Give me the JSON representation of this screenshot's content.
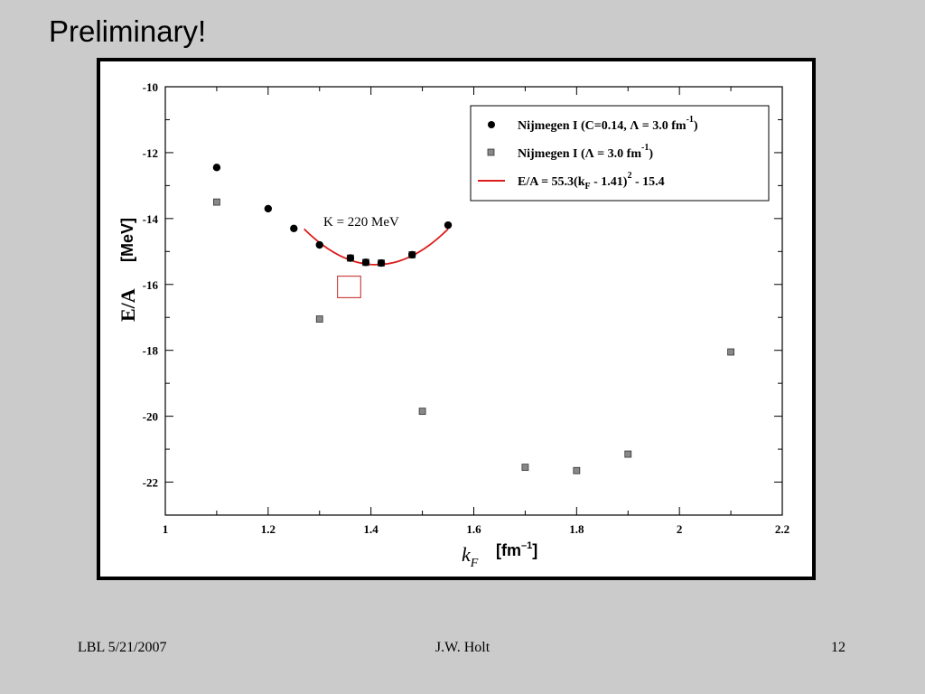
{
  "slide": {
    "title": "Preliminary!",
    "footer_left": "LBL 5/21/2007",
    "footer_center": "J.W. Holt",
    "footer_right": "12"
  },
  "chart_data": {
    "type": "scatter",
    "xlabel_sym": "k",
    "xlabel_sub": "F",
    "xlabel_unit": "[fm",
    "xlabel_unit_sup": "–1",
    "xlabel_unit_close": "]",
    "ylabel_sym": "E/A",
    "ylabel_unit": "[MeV]",
    "xlim": [
      1,
      2.2
    ],
    "ylim": [
      -23,
      -10
    ],
    "x_ticks": [
      1,
      1.2,
      1.4,
      1.6,
      1.8,
      2,
      2.2
    ],
    "x_tick_labels": [
      "1",
      "1.2",
      "1.4",
      "1.6",
      "1.8",
      "2",
      "2.2"
    ],
    "y_ticks": [
      -22,
      -20,
      -18,
      -16,
      -14,
      -12,
      -10
    ],
    "y_tick_labels": [
      "-22",
      "-20",
      "-18",
      "-16",
      "-14",
      "-12",
      "-10"
    ],
    "grid": false,
    "legend_position": "top-right",
    "annotation": "K = 220 MeV",
    "legend": [
      {
        "main": "Nijmegen I (C=0.14, Λ = 3.0 fm",
        "sup": "-1",
        "tail": ")"
      },
      {
        "main": "Nijmegen I (Λ = 3.0 fm",
        "sup": "-1",
        "tail": ")"
      },
      {
        "main": "E/A = 55.3(k",
        "sub": "F",
        "mid": " - 1.41)",
        "sup": "2",
        "tail": " - 15.4"
      }
    ],
    "series": [
      {
        "marker": "circle",
        "color": "#000000",
        "x": [
          1.1,
          1.2,
          1.25,
          1.3,
          1.36,
          1.39,
          1.42,
          1.48,
          1.55
        ],
        "y": [
          -12.45,
          -13.7,
          -14.3,
          -14.8,
          -15.2,
          -15.33,
          -15.35,
          -15.1,
          -14.2
        ]
      },
      {
        "marker": "square",
        "color": "#888888",
        "x": [
          1.1,
          1.3,
          1.36,
          1.39,
          1.42,
          1.48,
          1.5,
          1.7,
          1.8,
          1.9,
          2.1
        ],
        "y": [
          -13.5,
          -17.05,
          -15.2,
          -15.33,
          -15.35,
          -15.1,
          -19.85,
          -21.55,
          -21.65,
          -21.15,
          -18.05
        ]
      },
      {
        "marker": "line",
        "color": "#dd1c1c",
        "fit": {
          "a": 55.3,
          "x0": 1.41,
          "c": -15.4
        },
        "x_range": [
          1.27,
          1.55
        ]
      }
    ],
    "highlight_box": {
      "x": [
        1.335,
        1.38
      ],
      "y": [
        -15.75,
        -16.4
      ],
      "color": "#c02020"
    }
  }
}
